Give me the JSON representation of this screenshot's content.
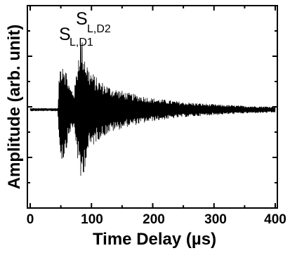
{
  "chart_data": {
    "type": "line",
    "title": "",
    "xlabel": "Time Delay (µs)",
    "ylabel": "Amplitude (arb. unit)",
    "xlim": [
      0,
      400
    ],
    "x_ticks": [
      "0",
      "100",
      "200",
      "300",
      "400"
    ],
    "grid": false,
    "legend": "none",
    "series": [
      {
        "color": "#000000",
        "envelope": [
          {
            "x": 0,
            "amp": 0.02
          },
          {
            "x": 45,
            "amp": 0.02
          },
          {
            "x": 48,
            "amp": 0.55
          },
          {
            "x": 53,
            "amp": 0.7
          },
          {
            "x": 58,
            "amp": 0.55
          },
          {
            "x": 65,
            "amp": 0.3
          },
          {
            "x": 72,
            "amp": 0.25
          },
          {
            "x": 78,
            "amp": 0.7
          },
          {
            "x": 82,
            "amp": 1.0
          },
          {
            "x": 88,
            "amp": 0.8
          },
          {
            "x": 95,
            "amp": 0.55
          },
          {
            "x": 110,
            "amp": 0.4
          },
          {
            "x": 130,
            "amp": 0.3
          },
          {
            "x": 160,
            "amp": 0.22
          },
          {
            "x": 200,
            "amp": 0.15
          },
          {
            "x": 250,
            "amp": 0.1
          },
          {
            "x": 300,
            "amp": 0.07
          },
          {
            "x": 350,
            "amp": 0.05
          },
          {
            "x": 400,
            "amp": 0.04
          }
        ]
      }
    ],
    "annotations": [
      {
        "main": "S",
        "sub": "L,D1",
        "x": 48
      },
      {
        "main": "S",
        "sub": "L,D2",
        "x": 80
      }
    ]
  }
}
